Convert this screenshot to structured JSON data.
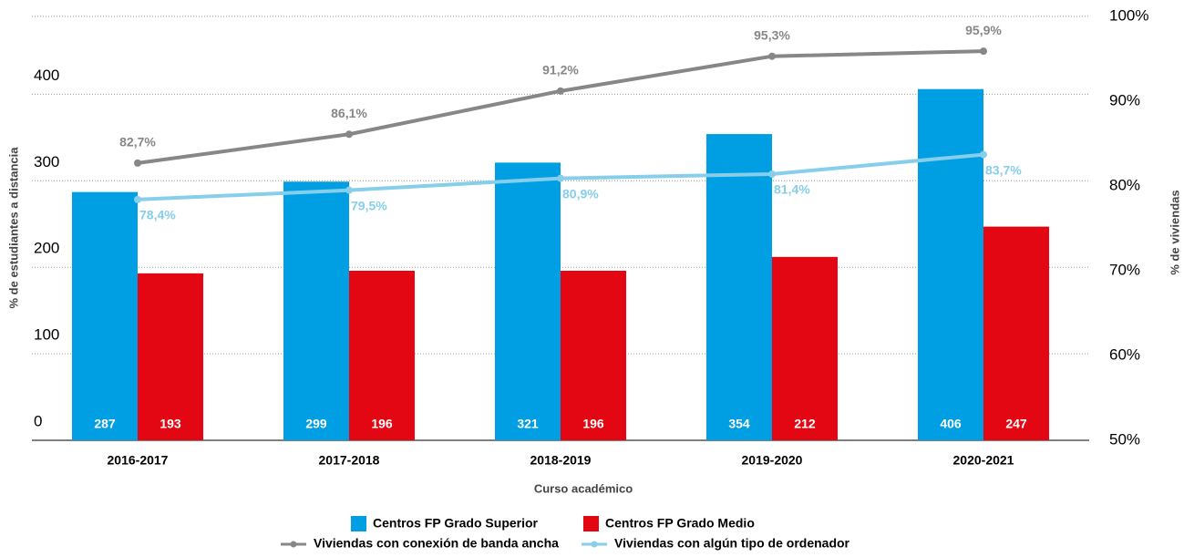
{
  "chart_data": {
    "type": "bar",
    "x_label": "Curso académico",
    "y_label": "% de estudiantes a distancia",
    "y2_label": "% de viviendas",
    "categories": [
      "2016-2017",
      "2017-2018",
      "2018-2019",
      "2019-2020",
      "2020-2021"
    ],
    "series": [
      {
        "name": "Centros FP Grado Superior",
        "type": "bar",
        "color": "#009fe3",
        "values": [
          287,
          299,
          321,
          354,
          406
        ]
      },
      {
        "name": "Centros FP Grado Medio",
        "type": "bar",
        "color": "#e30613",
        "values": [
          193,
          196,
          196,
          212,
          247
        ]
      },
      {
        "name": "Viviendas con conexión de banda ancha",
        "type": "line",
        "axis": "y2",
        "color": "#878787",
        "values": [
          82.7,
          86.1,
          91.2,
          95.3,
          95.9
        ],
        "value_labels": [
          "82,7%",
          "86,1%",
          "91,2%",
          "95,3%",
          "95,9%"
        ]
      },
      {
        "name": "Viviendas con algún tipo de ordenador",
        "type": "line",
        "axis": "y2",
        "color": "#87ceeb",
        "values": [
          78.4,
          79.5,
          80.9,
          81.4,
          83.7
        ],
        "value_labels": [
          "78,4%",
          "79,5%",
          "80,9%",
          "81,4%",
          "83,7%"
        ]
      }
    ],
    "ylim": [
      0,
      490
    ],
    "yticks": [
      0,
      100,
      200,
      300,
      400
    ],
    "y2lim": [
      50,
      100
    ],
    "y2ticks": [
      {
        "value": 50,
        "label": "50%"
      },
      {
        "value": 60,
        "label": "60%"
      },
      {
        "value": 70,
        "label": "70%"
      },
      {
        "value": 80,
        "label": "80%"
      },
      {
        "value": 90,
        "label": "90%"
      },
      {
        "value": 100,
        "label": "100%"
      }
    ],
    "grid": true
  }
}
